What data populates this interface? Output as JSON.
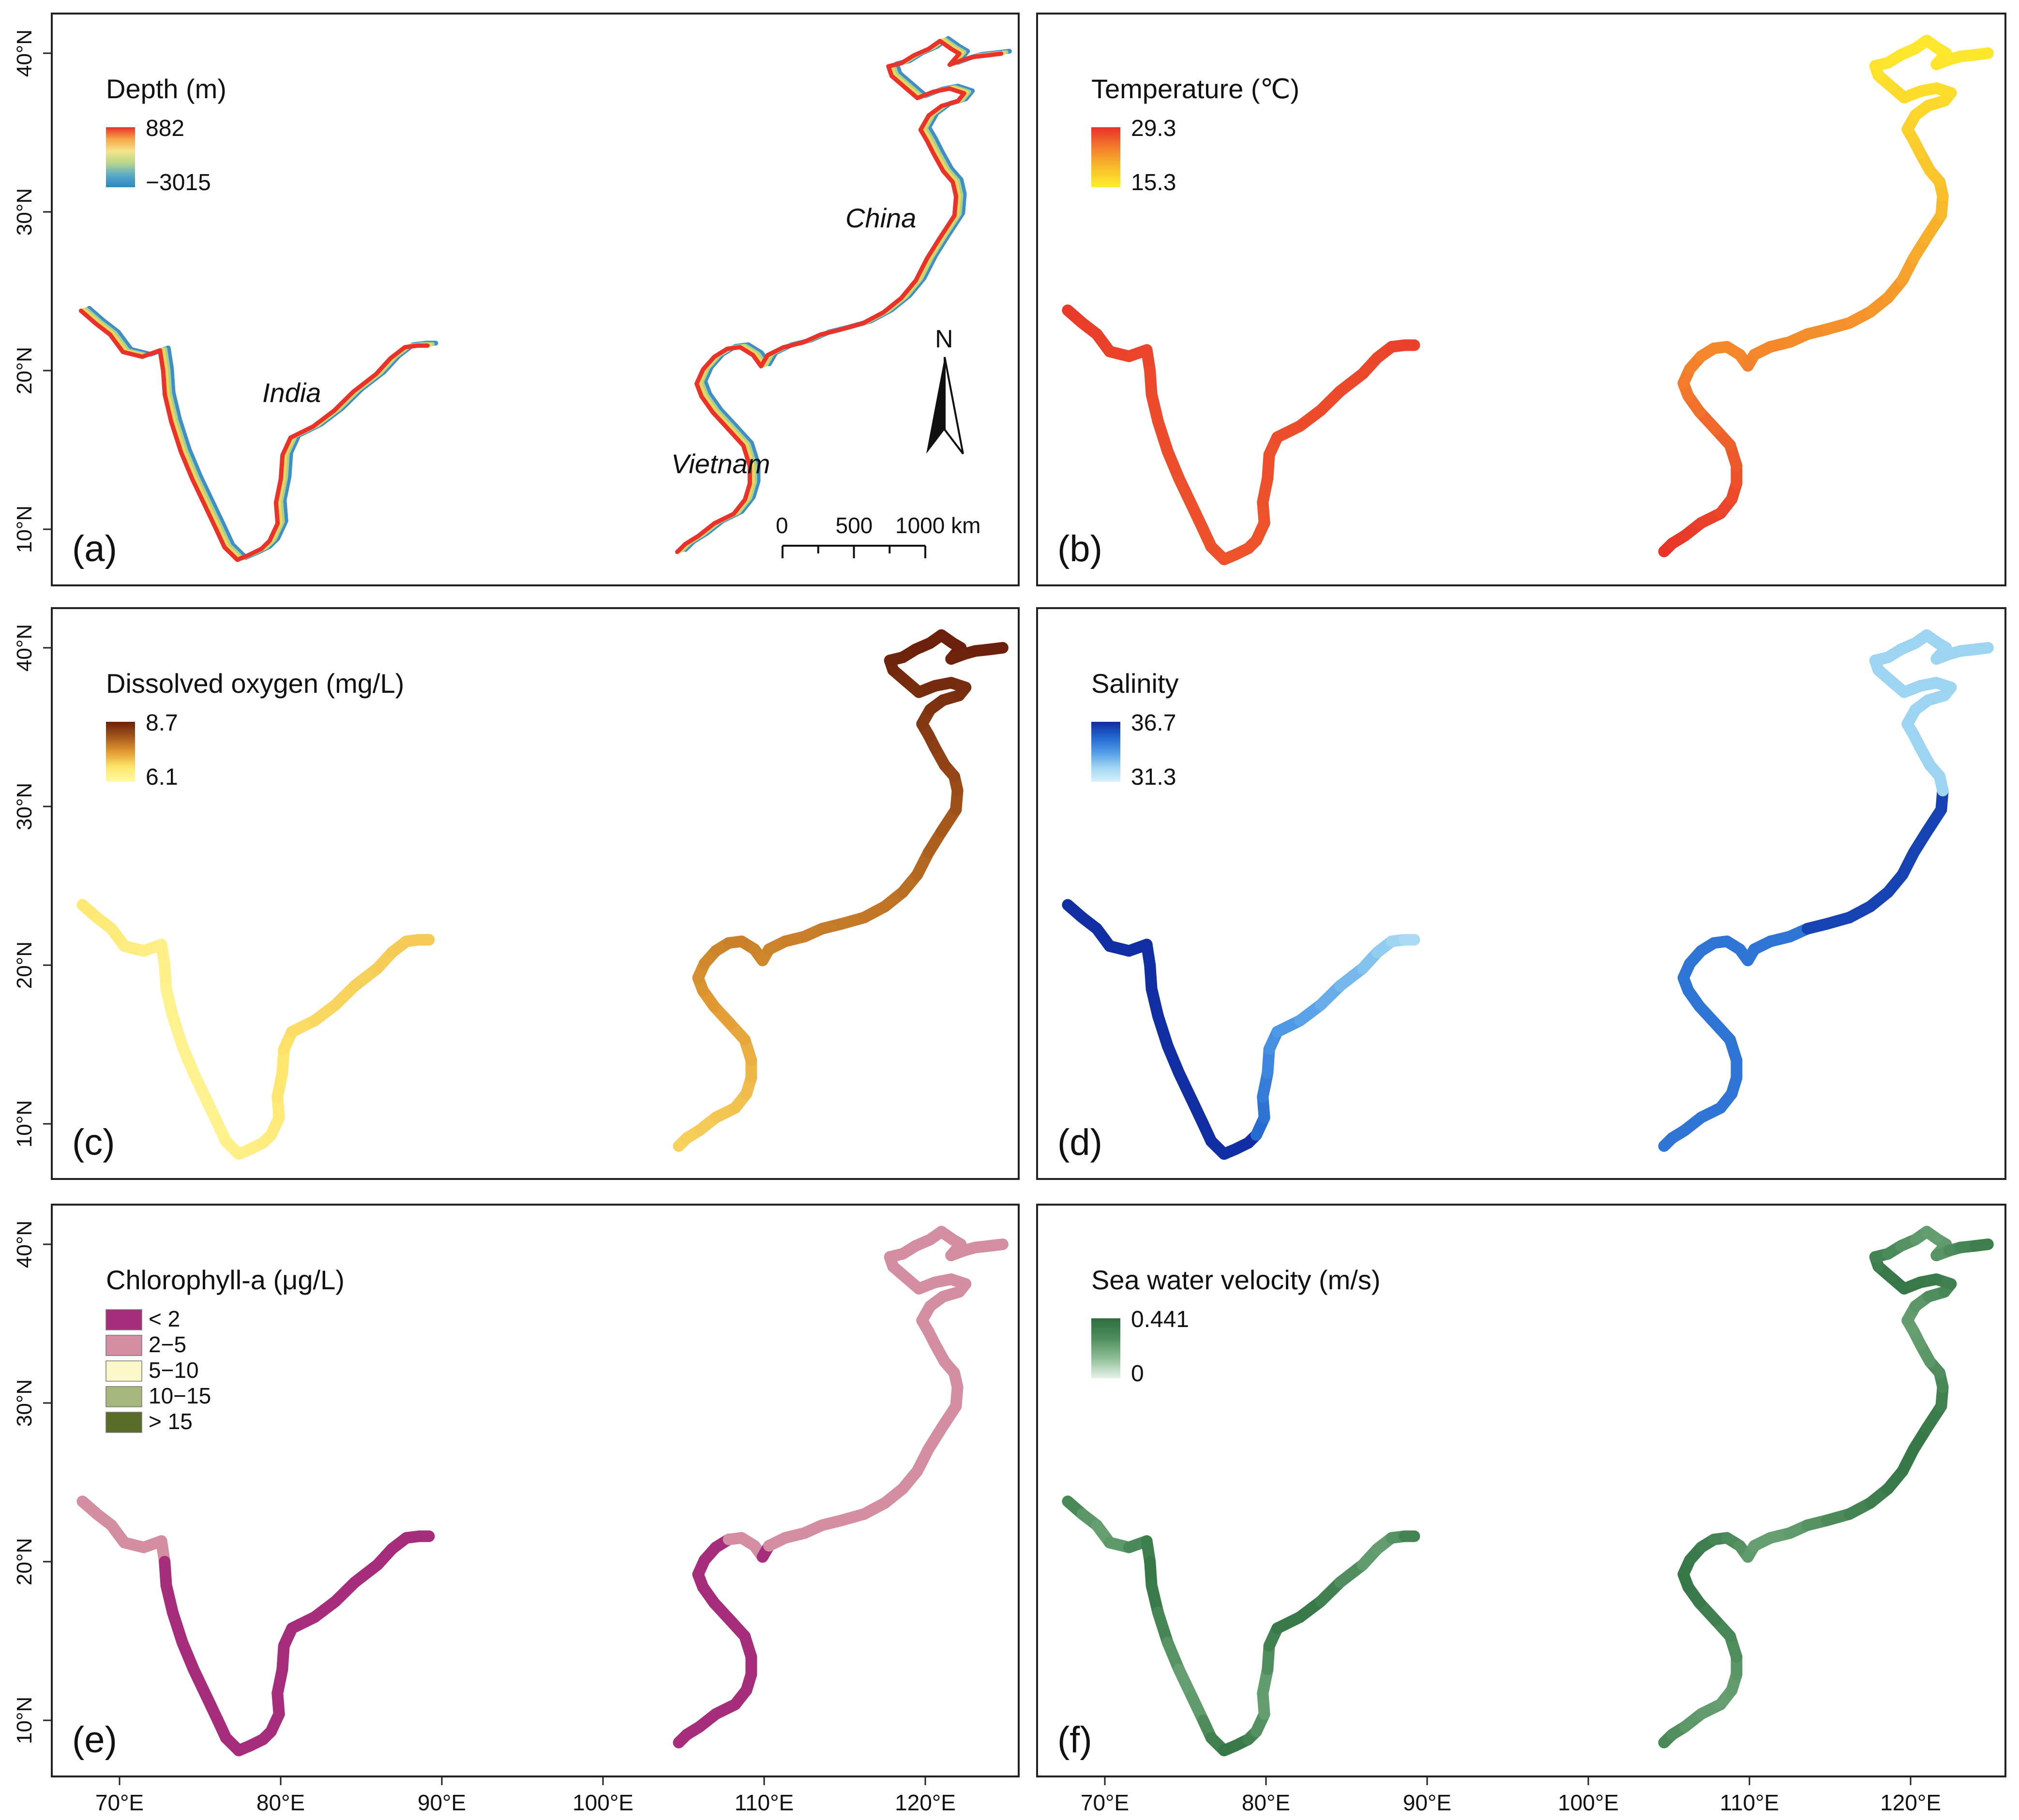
{
  "figure": {
    "lat_ticks": [
      "10°N",
      "20°N",
      "30°N",
      "40°N"
    ],
    "lon_ticks": [
      "70°E",
      "80°E",
      "90°E",
      "100°E",
      "110°E",
      "120°E"
    ],
    "map_extent": {
      "lon_range": [
        66,
        126
      ],
      "lat_range": [
        7,
        41
      ]
    }
  },
  "panels": [
    {
      "id": "a",
      "label": "(a)",
      "legend": {
        "title": "Depth (m)",
        "type": "continuous",
        "max_label": "882",
        "min_label": "−3015",
        "colors": [
          "#e8322a",
          "#f7a74a",
          "#f4e48a",
          "#b7d68c",
          "#5aa9c8",
          "#2f86c0"
        ]
      },
      "mode": "depth",
      "place_labels": [
        "India",
        "China",
        "Vietnam"
      ],
      "north_arrow": "N",
      "scale_bar": {
        "labels": [
          "0",
          "500",
          "1000 km"
        ]
      }
    },
    {
      "id": "b",
      "label": "(b)",
      "legend": {
        "title": "Temperature (℃)",
        "type": "continuous",
        "max_label": "29.3",
        "min_label": "15.3",
        "colors": [
          "#e8302a",
          "#f37c2c",
          "#f8bd2a",
          "#ffee2e"
        ]
      },
      "mode": "temperature"
    },
    {
      "id": "c",
      "label": "(c)",
      "legend": {
        "title": "Dissolved oxygen (mg/L)",
        "type": "continuous",
        "max_label": "8.7",
        "min_label": "6.1",
        "colors": [
          "#6b200b",
          "#a5561b",
          "#e29a32",
          "#ffe56c",
          "#fffaa5"
        ]
      },
      "mode": "oxygen"
    },
    {
      "id": "d",
      "label": "(d)",
      "legend": {
        "title": "Salinity",
        "type": "continuous",
        "max_label": "36.7",
        "min_label": "31.3",
        "colors": [
          "#0f2a9e",
          "#2266cf",
          "#4e9ae6",
          "#9dd4f2",
          "#d8f1fb"
        ]
      },
      "mode": "salinity"
    },
    {
      "id": "e",
      "label": "(e)",
      "legend": {
        "title": "Chlorophyll-a (μg/L)",
        "type": "categorical",
        "items": [
          {
            "label": "< 2",
            "color": "#a62d7c"
          },
          {
            "label": "2−5",
            "color": "#d48ea2"
          },
          {
            "label": "5−10",
            "color": "#fbf7c8"
          },
          {
            "label": "10−15",
            "color": "#a7b67b"
          },
          {
            "label": "> 15",
            "color": "#5b6b2a"
          }
        ]
      },
      "mode": "chlorophyll"
    },
    {
      "id": "f",
      "label": "(f)",
      "legend": {
        "title": "Sea water velocity (m/s)",
        "type": "continuous",
        "max_label": "0.441",
        "min_label": "0",
        "colors": [
          "#2c6e3f",
          "#4f8e5c",
          "#8fbe96",
          "#e7f3e8"
        ]
      },
      "mode": "velocity"
    }
  ],
  "coastlines": {
    "india": [
      [
        67.7,
        23.8
      ],
      [
        68.6,
        23.0
      ],
      [
        69.5,
        22.3
      ],
      [
        70.3,
        21.2
      ],
      [
        71.5,
        20.9
      ],
      [
        72.6,
        21.3
      ],
      [
        72.8,
        20.0
      ],
      [
        72.9,
        18.5
      ],
      [
        73.3,
        16.8
      ],
      [
        73.9,
        14.9
      ],
      [
        74.6,
        13.2
      ],
      [
        75.4,
        11.5
      ],
      [
        76.1,
        10.0
      ],
      [
        76.6,
        8.9
      ],
      [
        77.4,
        8.1
      ],
      [
        78.1,
        8.4
      ],
      [
        78.9,
        8.8
      ],
      [
        79.4,
        9.3
      ],
      [
        79.9,
        10.4
      ],
      [
        79.8,
        11.7
      ],
      [
        80.1,
        13.2
      ],
      [
        80.2,
        14.7
      ],
      [
        80.7,
        15.8
      ],
      [
        82.1,
        16.5
      ],
      [
        83.4,
        17.5
      ],
      [
        84.6,
        18.7
      ],
      [
        86.0,
        19.8
      ],
      [
        86.9,
        20.8
      ],
      [
        87.8,
        21.5
      ],
      [
        88.6,
        21.6
      ],
      [
        89.2,
        21.6
      ]
    ],
    "east": [
      [
        104.7,
        8.6
      ],
      [
        105.2,
        9.1
      ],
      [
        106.0,
        9.6
      ],
      [
        107.0,
        10.4
      ],
      [
        108.2,
        11.0
      ],
      [
        108.9,
        11.9
      ],
      [
        109.2,
        12.9
      ],
      [
        109.2,
        14.0
      ],
      [
        108.8,
        15.3
      ],
      [
        107.9,
        16.3
      ],
      [
        106.9,
        17.4
      ],
      [
        106.2,
        18.4
      ],
      [
        105.9,
        19.2
      ],
      [
        106.3,
        20.1
      ],
      [
        107.0,
        20.9
      ],
      [
        107.8,
        21.4
      ],
      [
        108.6,
        21.5
      ],
      [
        109.4,
        21.0
      ],
      [
        109.9,
        20.3
      ],
      [
        110.3,
        21.0
      ],
      [
        111.3,
        21.5
      ],
      [
        112.5,
        21.8
      ],
      [
        113.6,
        22.3
      ],
      [
        114.8,
        22.6
      ],
      [
        116.2,
        23.0
      ],
      [
        117.5,
        23.7
      ],
      [
        118.6,
        24.6
      ],
      [
        119.5,
        25.7
      ],
      [
        120.2,
        27.1
      ],
      [
        121.0,
        28.4
      ],
      [
        121.9,
        29.8
      ],
      [
        122.0,
        31.0
      ],
      [
        121.8,
        31.9
      ],
      [
        121.2,
        32.6
      ],
      [
        120.6,
        33.7
      ],
      [
        120.2,
        34.5
      ],
      [
        119.8,
        35.2
      ],
      [
        120.3,
        36.1
      ],
      [
        121.1,
        36.7
      ],
      [
        122.1,
        37.0
      ],
      [
        122.5,
        37.5
      ],
      [
        121.6,
        37.8
      ],
      [
        120.6,
        37.6
      ],
      [
        119.6,
        37.2
      ],
      [
        118.8,
        37.9
      ],
      [
        118.0,
        38.6
      ],
      [
        117.8,
        39.2
      ],
      [
        118.6,
        39.4
      ],
      [
        119.4,
        39.9
      ],
      [
        120.3,
        40.3
      ],
      [
        121.0,
        40.8
      ],
      [
        121.7,
        40.3
      ],
      [
        122.2,
        40.0
      ],
      [
        121.6,
        39.3
      ],
      [
        122.4,
        39.6
      ],
      [
        123.1,
        39.8
      ],
      [
        124.0,
        39.9
      ],
      [
        124.8,
        40.0
      ]
    ]
  }
}
